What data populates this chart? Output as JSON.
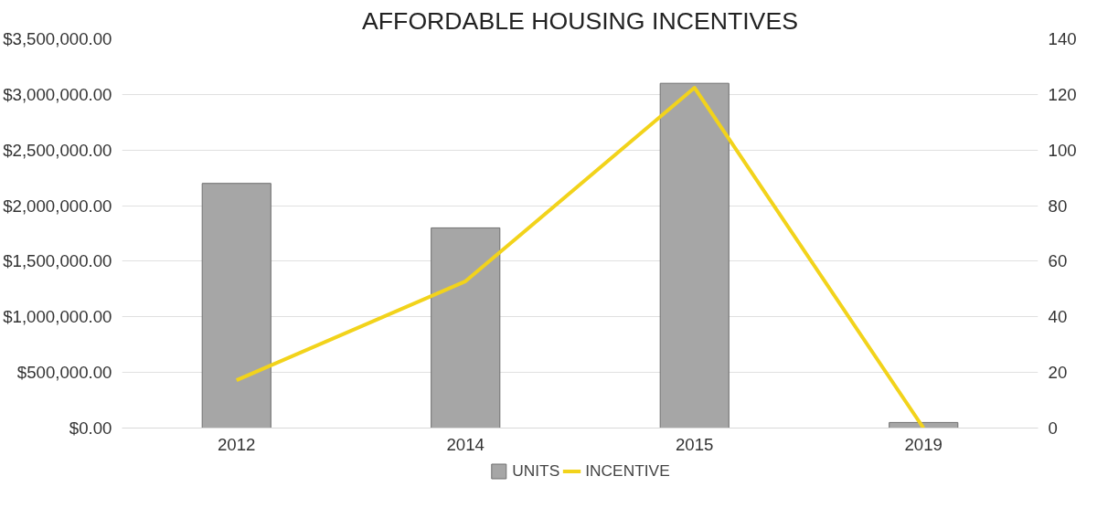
{
  "chart_data": {
    "type": "bar",
    "title": "AFFORDABLE HOUSING INCENTIVES",
    "categories": [
      "2012",
      "2014",
      "2015",
      "2019"
    ],
    "series": [
      {
        "name": "UNITS",
        "type": "bar",
        "axis": "y2",
        "color": "#a6a6a6",
        "values": [
          88,
          72,
          124,
          2
        ]
      },
      {
        "name": "INCENTIVE",
        "type": "line",
        "axis": "y",
        "color": "#f2d31b",
        "values": [
          430000,
          1320000,
          3060000,
          0
        ]
      }
    ],
    "ylim": [
      0,
      3500000
    ],
    "yticks": [
      {
        "value": 0,
        "label": "$0.00"
      },
      {
        "value": 500000,
        "label": "$500,000.00"
      },
      {
        "value": 1000000,
        "label": "$1,000,000.00"
      },
      {
        "value": 1500000,
        "label": "$1,500,000.00"
      },
      {
        "value": 2000000,
        "label": "$2,000,000.00"
      },
      {
        "value": 2500000,
        "label": "$2,500,000.00"
      },
      {
        "value": 3000000,
        "label": "$3,000,000.00"
      },
      {
        "value": 3500000,
        "label": "$3,500,000.00"
      }
    ],
    "y2lim": [
      0,
      140
    ],
    "y2ticks": [
      0,
      20,
      40,
      60,
      80,
      100,
      120,
      140
    ],
    "grid": "y",
    "legend": "bottom"
  }
}
